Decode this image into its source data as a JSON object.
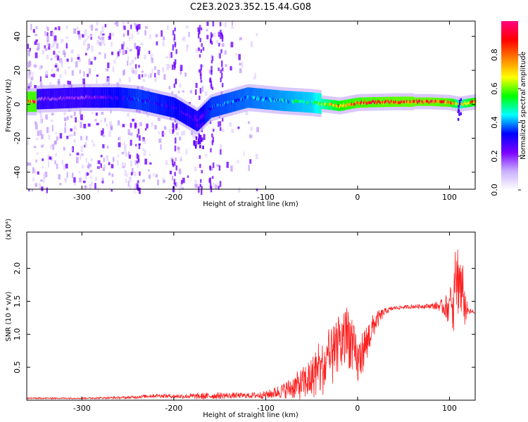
{
  "title": "C2E3.2023.352.15.44.G08",
  "chart_data": [
    {
      "type": "heatmap",
      "panel": "spectrogram",
      "xlabel": "Height of straight line (km)",
      "ylabel": "Frequency (Hz)",
      "xlim": [
        -360,
        128
      ],
      "ylim": [
        -50,
        49
      ],
      "x_ticks": [
        -300,
        -200,
        -100,
        0,
        100
      ],
      "y_ticks": [
        -40,
        -20,
        0,
        20,
        40
      ],
      "colorbar": {
        "label": "Normalized spectral amplitude",
        "range": [
          0,
          1
        ],
        "ticks": [
          0.0,
          0.2,
          0.4,
          0.6,
          0.8
        ],
        "colormap": [
          "#ffffff",
          "#c9b0ff",
          "#7a00ff",
          "#0000ff",
          "#00ffff",
          "#00ff00",
          "#ffff00",
          "#ff8000",
          "#ff0000",
          "#ff0080"
        ]
      },
      "noise_region_x": [
        -360,
        -110
      ],
      "signal_trace": [
        {
          "x": -350,
          "f": 3,
          "amp": 0.2
        },
        {
          "x": -300,
          "f": 4,
          "amp": 0.2
        },
        {
          "x": -260,
          "f": 4,
          "amp": 0.3
        },
        {
          "x": -240,
          "f": 3,
          "amp": 0.35
        },
        {
          "x": -200,
          "f": -2,
          "amp": 0.3
        },
        {
          "x": -175,
          "f": -10,
          "amp": 0.25
        },
        {
          "x": -160,
          "f": -2,
          "amp": 0.35
        },
        {
          "x": -120,
          "f": 4,
          "amp": 0.4
        },
        {
          "x": -80,
          "f": 2,
          "amp": 0.45
        },
        {
          "x": -50,
          "f": 1,
          "amp": 0.5
        },
        {
          "x": -20,
          "f": -1,
          "amp": 0.8
        },
        {
          "x": 0,
          "f": 1,
          "amp": 0.85
        },
        {
          "x": 40,
          "f": 1.5,
          "amp": 0.88
        },
        {
          "x": 80,
          "f": 1.5,
          "amp": 0.88
        },
        {
          "x": 100,
          "f": 1,
          "amp": 0.85
        },
        {
          "x": 110,
          "f": 0,
          "amp": 0.6
        },
        {
          "x": 128,
          "f": 1.5,
          "amp": 0.85
        }
      ]
    },
    {
      "type": "line",
      "panel": "snr",
      "xlabel": "Height of straight line (km)",
      "ylabel": "SNR (10 * v/v)",
      "scale_label": "(x10⁴)",
      "xlim": [
        -360,
        128
      ],
      "ylim": [
        0,
        2.55
      ],
      "x_ticks": [
        -300,
        -200,
        -100,
        0,
        100
      ],
      "y_ticks": [
        0.5,
        1.0,
        1.5,
        2.0
      ],
      "grid": false,
      "color": "#ff2020",
      "series": [
        {
          "x": [
            -360,
            -300,
            -250,
            -220,
            -200,
            -170,
            -150,
            -120,
            -100,
            -80,
            -60,
            -40,
            -30,
            -20,
            -10,
            0,
            10,
            20,
            30,
            40,
            60,
            80,
            90,
            100,
            105,
            110,
            115,
            120,
            128
          ],
          "y": [
            0.03,
            0.03,
            0.04,
            0.07,
            0.06,
            0.06,
            0.07,
            0.07,
            0.08,
            0.15,
            0.25,
            0.45,
            0.6,
            0.8,
            1.0,
            0.55,
            0.9,
            1.2,
            1.35,
            1.4,
            1.42,
            1.43,
            1.43,
            1.4,
            1.6,
            1.9,
            1.5,
            1.35,
            1.33
          ],
          "spread": [
            0.01,
            0.01,
            0.02,
            0.03,
            0.03,
            0.05,
            0.05,
            0.04,
            0.06,
            0.12,
            0.25,
            0.4,
            0.45,
            0.45,
            0.5,
            0.35,
            0.3,
            0.15,
            0.05,
            0.03,
            0.03,
            0.04,
            0.08,
            0.25,
            0.6,
            0.6,
            0.5,
            0.05,
            0.03
          ]
        }
      ]
    }
  ]
}
